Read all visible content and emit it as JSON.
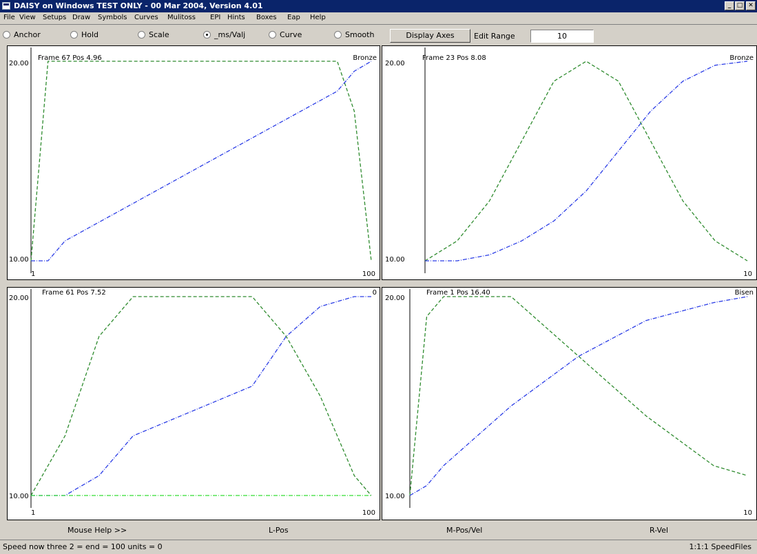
{
  "window": {
    "title": "DAISY on Windows TEST ONLY - 00 Mar 2004, Version 4.01"
  },
  "menu": [
    "File",
    "View",
    "Setups",
    "Draw",
    "Symbols",
    "Curves",
    "Mulitoss",
    "EPI",
    "Hints",
    "Boxes",
    "Eap",
    "Help"
  ],
  "toolbar": {
    "modes": [
      {
        "label": "Anchor",
        "checked": false
      },
      {
        "label": "Hold",
        "checked": false
      },
      {
        "label": "Scale",
        "checked": false
      },
      {
        "label": "_ms/Valj",
        "checked": true
      },
      {
        "label": "Curve",
        "checked": false
      },
      {
        "label": "Smooth",
        "checked": false
      }
    ],
    "display_axes_label": "Display Axes",
    "edit_range_label": "Edit Range",
    "edit_range_value": "10"
  },
  "panels": [
    {
      "header": "Frame 67  Pos 4.96",
      "tag": "Bronze",
      "ymax": "20.00",
      "ymin": "10.00",
      "xmin": "1",
      "xmax": "100"
    },
    {
      "header": "Frame 23  Pos 8.08",
      "tag": "Bronze",
      "ymax": "20.00",
      "ymin": "10.00",
      "xmin": "",
      "xmax": "10"
    },
    {
      "header": "Frame 61  Pos 7.52",
      "tag": "0",
      "ymax": "20.00",
      "ymin": "10.00",
      "xmin": "1",
      "xmax": "100"
    },
    {
      "header": "Frame 1  Pos 16.40",
      "tag": "Bisen",
      "ymax": "20.00",
      "ymin": "10.00",
      "xmin": "",
      "xmax": "10"
    }
  ],
  "bottom_labels": [
    "Mouse Help >>",
    "L-Pos",
    "M-Pos/Vel",
    "R-Vel"
  ],
  "status": {
    "left": "Speed now three 2 = end = 100 units = 0",
    "right": "1:1:1  SpeedFiles"
  },
  "colors": {
    "accent_title": "#0a246a",
    "curve_green": "#2e8b2e",
    "curve_blue": "#2a3ce6",
    "curve_lime": "#33dd33"
  },
  "chart_data": [
    {
      "type": "line",
      "x": [
        0,
        5,
        10,
        90,
        95,
        100
      ],
      "series": [
        {
          "values": [
            10,
            20,
            20,
            20,
            17.5,
            10
          ]
        },
        {
          "values": [
            10,
            10,
            11,
            18.5,
            19.5,
            20
          ]
        }
      ],
      "ylim": [
        10,
        20
      ],
      "xlim": [
        0,
        100
      ]
    },
    {
      "type": "line",
      "x": [
        0,
        10,
        20,
        30,
        40,
        50,
        60,
        70,
        80,
        90,
        100
      ],
      "series": [
        {
          "values": [
            10,
            11,
            13,
            16,
            19,
            20,
            19,
            16,
            13,
            11,
            10
          ]
        },
        {
          "values": [
            10,
            10,
            10.3,
            11,
            12,
            13.5,
            15.5,
            17.5,
            19,
            19.8,
            20
          ]
        }
      ],
      "ylim": [
        10,
        20
      ],
      "xlim": [
        0,
        100
      ]
    },
    {
      "type": "line",
      "x": [
        0,
        10,
        20,
        30,
        65,
        75,
        85,
        95,
        100
      ],
      "series": [
        {
          "values": [
            10,
            13,
            18,
            20,
            20,
            18,
            15,
            11,
            10
          ]
        },
        {
          "values": [
            10,
            10,
            11,
            13,
            15.5,
            18,
            19.5,
            20,
            20
          ]
        },
        {
          "values": [
            10,
            10,
            10,
            10,
            10,
            10,
            10,
            10,
            10
          ]
        }
      ],
      "ylim": [
        10,
        20
      ],
      "xlim": [
        0,
        100
      ]
    },
    {
      "type": "line",
      "x": [
        0,
        5,
        10,
        30,
        50,
        70,
        90,
        100
      ],
      "series": [
        {
          "values": [
            10,
            19,
            20,
            20,
            17,
            14,
            11.5,
            11
          ]
        },
        {
          "values": [
            10,
            10.5,
            11.5,
            14.5,
            17,
            18.8,
            19.7,
            20
          ]
        }
      ],
      "ylim": [
        10,
        20
      ],
      "xlim": [
        0,
        100
      ]
    }
  ]
}
